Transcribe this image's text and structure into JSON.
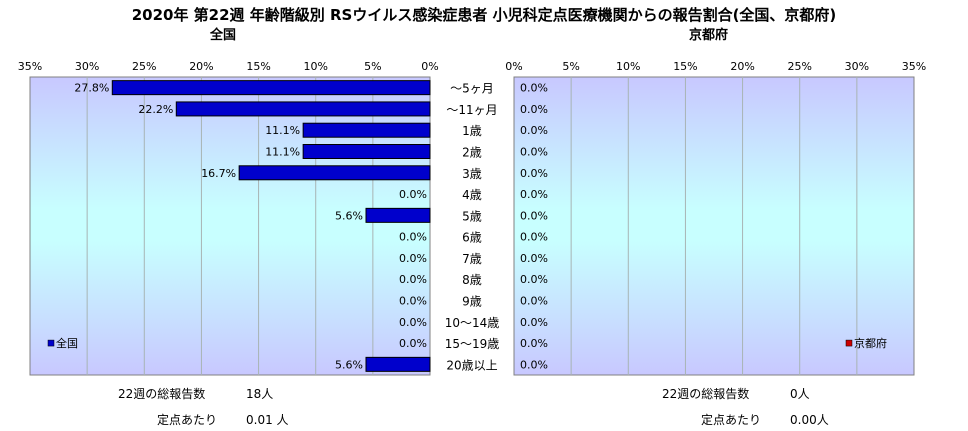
{
  "title": "2020年 第22週 年齢階級別 RSウイルス感染症患者 小児科定点医療機関からの報告割合(全国、京都府)",
  "chart_data": [
    {
      "type": "bar",
      "orientation": "horizontal",
      "direction": "right-to-left",
      "title": "全国",
      "categories": [
        "～5ヶ月",
        "～11ヶ月",
        "1歳",
        "2歳",
        "3歳",
        "4歳",
        "5歳",
        "6歳",
        "7歳",
        "8歳",
        "9歳",
        "10～14歳",
        "15～19歳",
        "20歳以上"
      ],
      "series": [
        {
          "name": "全国",
          "color": "#0000cc",
          "values": [
            27.8,
            22.2,
            11.1,
            11.1,
            16.7,
            0.0,
            5.6,
            0.0,
            0.0,
            0.0,
            0.0,
            0.0,
            0.0,
            5.6
          ],
          "labels": [
            "27.8%",
            "22.2%",
            "11.1%",
            "11.1%",
            "16.7%",
            "0.0%",
            "5.6%",
            "0.0%",
            "0.0%",
            "0.0%",
            "0.0%",
            "0.0%",
            "0.0%",
            "5.6%"
          ]
        }
      ],
      "xlim": [
        0,
        35
      ],
      "xticks": [
        "35%",
        "30%",
        "25%",
        "20%",
        "15%",
        "10%",
        "5%",
        "0%"
      ],
      "legend": "bottom-left",
      "grid": true
    },
    {
      "type": "bar",
      "orientation": "horizontal",
      "direction": "left-to-right",
      "title": "京都府",
      "categories": [
        "～5ヶ月",
        "～11ヶ月",
        "1歳",
        "2歳",
        "3歳",
        "4歳",
        "5歳",
        "6歳",
        "7歳",
        "8歳",
        "9歳",
        "10～14歳",
        "15～19歳",
        "20歳以上"
      ],
      "series": [
        {
          "name": "京都府",
          "color": "#cc0000",
          "values": [
            0,
            0,
            0,
            0,
            0,
            0,
            0,
            0,
            0,
            0,
            0,
            0,
            0,
            0
          ],
          "labels": [
            "0.0%",
            "0.0%",
            "0.0%",
            "0.0%",
            "0.0%",
            "0.0%",
            "0.0%",
            "0.0%",
            "0.0%",
            "0.0%",
            "0.0%",
            "0.0%",
            "0.0%",
            "0.0%"
          ]
        }
      ],
      "xlim": [
        0,
        35
      ],
      "xticks": [
        "0%",
        "5%",
        "10%",
        "15%",
        "20%",
        "25%",
        "30%",
        "35%"
      ],
      "legend": "bottom-right",
      "grid": true
    }
  ],
  "stats": {
    "national": {
      "total_label": "22週の総報告数",
      "total_value": "18人",
      "per_label": "定点あたり",
      "per_value": "0.01 人"
    },
    "kyoto": {
      "total_label": "22週の総報告数",
      "total_value": "0人",
      "per_label": "定点あたり",
      "per_value": "0.00人"
    }
  }
}
